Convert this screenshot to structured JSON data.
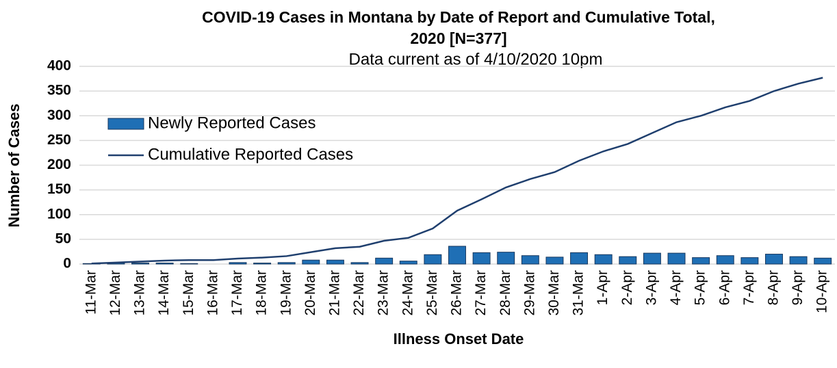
{
  "chart_data": {
    "type": "bar",
    "title": "COVID-19 Cases in Montana by Date of Report and Cumulative Total,",
    "subtitle": "2020 [N=377]",
    "annotation": "Data current as of 4/10/2020 10pm",
    "x_label": "Illness Onset Date",
    "y_label": "Number of Cases",
    "categories": [
      "11-Mar",
      "12-Mar",
      "13-Mar",
      "14-Mar",
      "15-Mar",
      "16-Mar",
      "17-Mar",
      "18-Mar",
      "19-Mar",
      "20-Mar",
      "21-Mar",
      "22-Mar",
      "23-Mar",
      "24-Mar",
      "25-Mar",
      "26-Mar",
      "27-Mar",
      "28-Mar",
      "29-Mar",
      "30-Mar",
      "31-Mar",
      "1-Apr",
      "2-Apr",
      "3-Apr",
      "4-Apr",
      "5-Apr",
      "6-Apr",
      "7-Apr",
      "8-Apr",
      "9-Apr",
      "10-Apr"
    ],
    "series": [
      {
        "name": "Newly Reported Cases",
        "type": "bar",
        "color": "#1f6fb5",
        "values": [
          1,
          2,
          2,
          2,
          1,
          0,
          3,
          2,
          3,
          8,
          8,
          3,
          12,
          6,
          19,
          36,
          23,
          24,
          17,
          14,
          23,
          19,
          15,
          22,
          22,
          13,
          17,
          13,
          20,
          15,
          12
        ]
      },
      {
        "name": "Cumulative Reported Cases",
        "type": "line",
        "color": "#1f3f6e",
        "values": [
          1,
          3,
          5,
          7,
          8,
          8,
          11,
          13,
          16,
          24,
          32,
          35,
          47,
          53,
          72,
          108,
          131,
          155,
          172,
          186,
          209,
          228,
          243,
          265,
          287,
          300,
          317,
          330,
          350,
          365,
          377
        ]
      }
    ],
    "ylim": [
      0,
      400
    ],
    "yticks": [
      0,
      50,
      100,
      150,
      200,
      250,
      300,
      350,
      400
    ],
    "grid": true
  }
}
